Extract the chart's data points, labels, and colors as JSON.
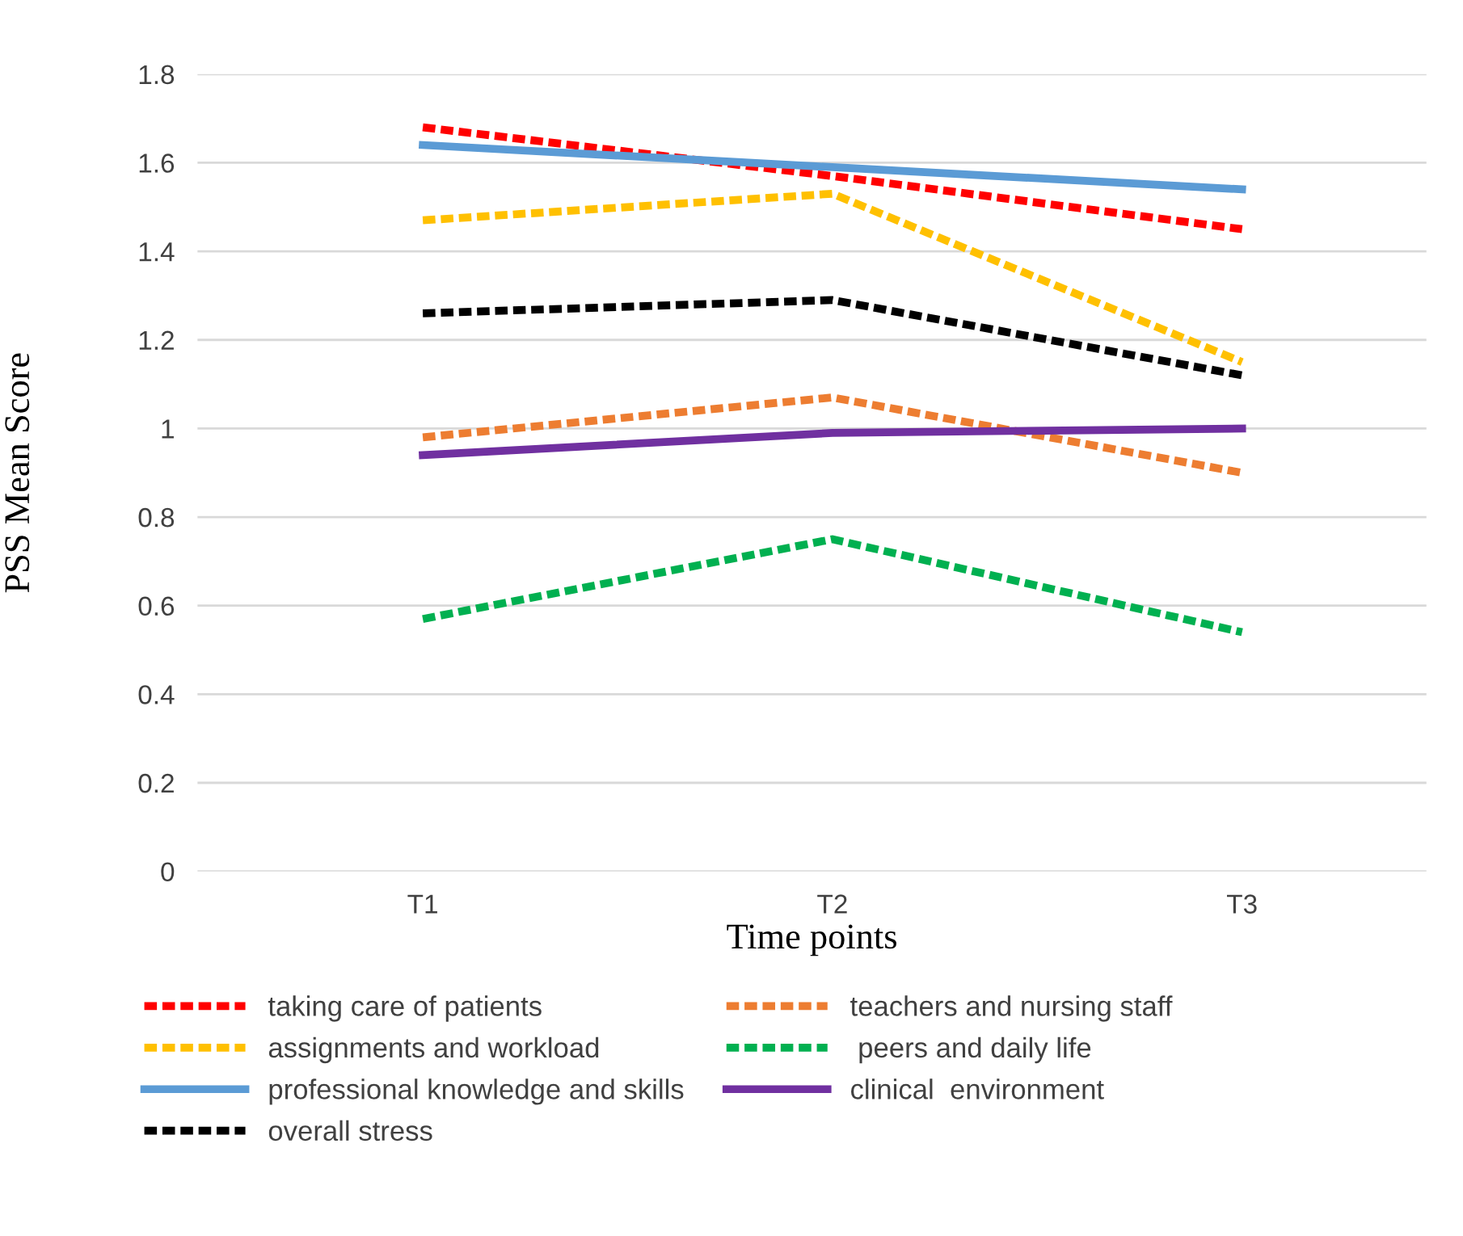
{
  "chart_data": {
    "type": "line",
    "ylabel": "PSS Mean Score",
    "xlabel": "Time points",
    "categories": [
      "T1",
      "T2",
      "T3"
    ],
    "ylim": [
      0,
      1.8
    ],
    "yticks": [
      0,
      0.2,
      0.4,
      0.6,
      0.8,
      1,
      1.2,
      1.4,
      1.6,
      1.8
    ],
    "grid": "y",
    "legend": "bottom",
    "marker": "none",
    "series": [
      {
        "name": "taking care of patients",
        "color": "#ff0000",
        "line_style": "dashed",
        "values": [
          1.68,
          1.57,
          1.45
        ]
      },
      {
        "name": "assignments and workload",
        "color": "#ffc000",
        "line_style": "dashed",
        "values": [
          1.47,
          1.53,
          1.15
        ]
      },
      {
        "name": "professional knowledge and skills",
        "color": "#5b9bd5",
        "line_style": "solid",
        "values": [
          1.64,
          1.59,
          1.54
        ]
      },
      {
        "name": "overall stress",
        "color": "#000000",
        "line_style": "dashed",
        "values": [
          1.26,
          1.29,
          1.12
        ]
      },
      {
        "name": "teachers and nursing staff",
        "color": "#ed7d31",
        "line_style": "dashed",
        "values": [
          0.98,
          1.07,
          0.9
        ]
      },
      {
        "name": " peers and daily life",
        "color": "#00b050",
        "line_style": "dashed",
        "values": [
          0.57,
          0.75,
          0.54
        ]
      },
      {
        "name": "clinical  environment",
        "color": "#7030a0",
        "line_style": "solid",
        "values": [
          0.94,
          0.99,
          1.0
        ]
      }
    ]
  }
}
